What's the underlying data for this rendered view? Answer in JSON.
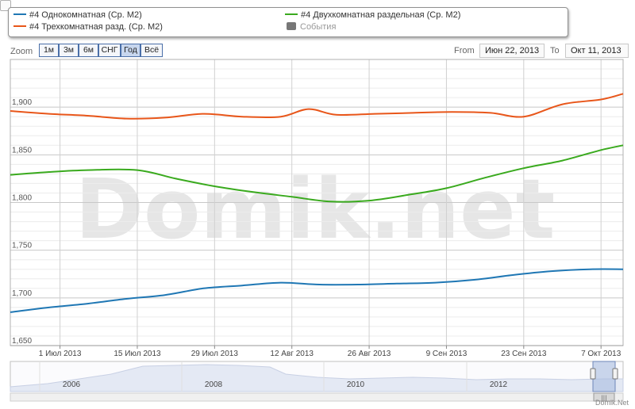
{
  "legend": {
    "items": [
      {
        "label": "#4 Однокомнатная (Ср. М2)",
        "color": "#1f77b4"
      },
      {
        "label": "#4 Трехкомнатная разд. (Ср. М2)",
        "color": "#e8561a"
      },
      {
        "label": "#4 Двухкомнатная раздельная (Ср. М2)",
        "color": "#3aaa1e"
      },
      {
        "label": "События",
        "color": "#777777"
      }
    ]
  },
  "zoom": {
    "label": "Zoom",
    "buttons": [
      "1м",
      "3м",
      "6м",
      "СНГ",
      "Год",
      "Всё"
    ],
    "selected": "Год"
  },
  "range": {
    "from_label": "From",
    "from_value": "Июн 22, 2013",
    "to_label": "To",
    "to_value": "Окт 11, 2013"
  },
  "watermark": "Domik.net",
  "credit": "Domik.Net",
  "chart_data": {
    "type": "line",
    "ylim": [
      1650,
      1950
    ],
    "yticks": [
      1650,
      1700,
      1750,
      1800,
      1850,
      1900
    ],
    "ytick_labels": [
      "1,650",
      "1,700",
      "1,750",
      "1,800",
      "1,850",
      "1,900"
    ],
    "x_range": [
      "2013-06-22",
      "2013-10-11"
    ],
    "xticks": [
      {
        "date": "2013-07-01",
        "label": "1 Июл 2013"
      },
      {
        "date": "2013-07-15",
        "label": "15 Июл 2013"
      },
      {
        "date": "2013-07-29",
        "label": "29 Июл 2013"
      },
      {
        "date": "2013-08-12",
        "label": "12 Авг 2013"
      },
      {
        "date": "2013-08-26",
        "label": "26 Авг 2013"
      },
      {
        "date": "2013-09-09",
        "label": "9 Сен 2013"
      },
      {
        "date": "2013-09-23",
        "label": "23 Сен 2013"
      },
      {
        "date": "2013-10-07",
        "label": "7 Окт 2013"
      }
    ],
    "grid": true,
    "series": [
      {
        "name": "#4 Трехкомнатная разд. (Ср. М2)",
        "color": "#e8561a",
        "points": [
          [
            "2013-06-22",
            1896
          ],
          [
            "2013-06-29",
            1893
          ],
          [
            "2013-07-06",
            1891
          ],
          [
            "2013-07-13",
            1888
          ],
          [
            "2013-07-20",
            1889
          ],
          [
            "2013-07-27",
            1893
          ],
          [
            "2013-08-03",
            1890
          ],
          [
            "2013-08-10",
            1890
          ],
          [
            "2013-08-15",
            1898
          ],
          [
            "2013-08-20",
            1892
          ],
          [
            "2013-08-27",
            1893
          ],
          [
            "2013-09-03",
            1894
          ],
          [
            "2013-09-10",
            1895
          ],
          [
            "2013-09-17",
            1894
          ],
          [
            "2013-09-23",
            1890
          ],
          [
            "2013-09-30",
            1903
          ],
          [
            "2013-10-07",
            1908
          ],
          [
            "2013-10-11",
            1914
          ]
        ]
      },
      {
        "name": "#4 Двухкомнатная раздельная (Ср. М2)",
        "color": "#3aaa1e",
        "points": [
          [
            "2013-06-22",
            1829
          ],
          [
            "2013-06-29",
            1832
          ],
          [
            "2013-07-06",
            1834
          ],
          [
            "2013-07-15",
            1834
          ],
          [
            "2013-07-22",
            1825
          ],
          [
            "2013-07-29",
            1817
          ],
          [
            "2013-08-05",
            1811
          ],
          [
            "2013-08-12",
            1806
          ],
          [
            "2013-08-19",
            1801
          ],
          [
            "2013-08-26",
            1802
          ],
          [
            "2013-09-02",
            1808
          ],
          [
            "2013-09-09",
            1815
          ],
          [
            "2013-09-16",
            1826
          ],
          [
            "2013-09-23",
            1836
          ],
          [
            "2013-09-30",
            1844
          ],
          [
            "2013-10-07",
            1855
          ],
          [
            "2013-10-11",
            1860
          ]
        ]
      },
      {
        "name": "#4 Однокомнатная (Ср. М2)",
        "color": "#1f77b4",
        "points": [
          [
            "2013-06-22",
            1685
          ],
          [
            "2013-06-29",
            1690
          ],
          [
            "2013-07-06",
            1694
          ],
          [
            "2013-07-13",
            1699
          ],
          [
            "2013-07-20",
            1703
          ],
          [
            "2013-07-27",
            1710
          ],
          [
            "2013-08-03",
            1713
          ],
          [
            "2013-08-10",
            1716
          ],
          [
            "2013-08-17",
            1714
          ],
          [
            "2013-08-24",
            1714
          ],
          [
            "2013-08-31",
            1715
          ],
          [
            "2013-09-07",
            1716
          ],
          [
            "2013-09-14",
            1719
          ],
          [
            "2013-09-21",
            1724
          ],
          [
            "2013-09-28",
            1728
          ],
          [
            "2013-10-05",
            1730
          ],
          [
            "2013-10-11",
            1730
          ]
        ]
      }
    ]
  },
  "navigator": {
    "year_labels": [
      "2006",
      "2008",
      "2010",
      "2012"
    ],
    "scroll_glyph": "|||"
  }
}
